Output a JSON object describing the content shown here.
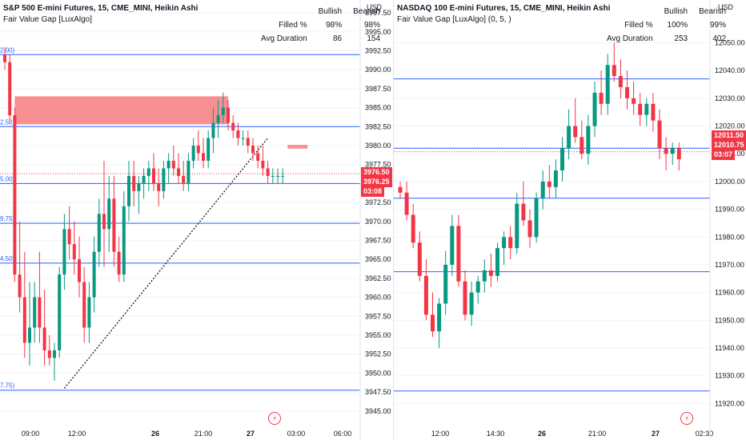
{
  "colors": {
    "bull": "#089981",
    "bear": "#f23645",
    "level": "#2962ff",
    "fvg_fill": "#f77c80",
    "grid": "#f0f3fa",
    "trend": "#131722",
    "axis_text": "#131722",
    "level_label": "#2962ff"
  },
  "chart_data": [
    {
      "type": "candlestick",
      "title": "S&P 500 E-mini Futures, 15, CME_MINI, Heikin Ashi",
      "indicator": "Fair Value Gap [LuxAlgo]",
      "currency": "USD",
      "stats": {
        "headers": [
          "Bullish",
          "Bearish"
        ],
        "rows": [
          {
            "label": "Filled %",
            "values": [
              "98%",
              "98%"
            ]
          },
          {
            "label": "Avg Duration",
            "values": [
              "86",
              "154"
            ]
          }
        ]
      },
      "y_ticks": [
        "3997.50",
        "3995.00",
        "3992.50",
        "3990.00",
        "3987.50",
        "3985.00",
        "3982.50",
        "3980.00",
        "3977.50",
        "3975.00",
        "3972.50",
        "3970.00",
        "3967.50",
        "3965.00",
        "3962.50",
        "3960.00",
        "3957.50",
        "3955.00",
        "3952.50",
        "3950.00",
        "3947.50",
        "3945.00"
      ],
      "ylim": [
        3943.5,
        3999.2
      ],
      "x_ticks": [
        "09:00",
        "12:00",
        "26",
        "21:00",
        "27",
        "03:00",
        "06:00"
      ],
      "level_labels": [
        "2.00)",
        "2.50)",
        "5.00)",
        "9.75)",
        "4.50)",
        "7.75)"
      ],
      "levels": [
        3992.0,
        3982.5,
        3975.0,
        3969.75,
        3964.5,
        3947.75
      ],
      "price_tags": [
        "3976.50",
        "3976.25",
        "03:08"
      ],
      "current_price": 3976.3,
      "fvg_boxes": [
        {
          "from": 2,
          "to": 45,
          "low": 3982.8,
          "high": 3986.5
        },
        {
          "from": 57,
          "to": 61,
          "low": 3979.6,
          "high": 3980.1
        }
      ],
      "trend_line": {
        "from": 12,
        "to": 53,
        "y_from": 3948.0,
        "y_to": 3981.0
      },
      "ohlc": [
        [
          3992,
          3993,
          3990,
          3991
        ],
        [
          3991,
          3992,
          3983,
          3984
        ],
        [
          3984,
          3985,
          3962,
          3963
        ],
        [
          3963,
          3970,
          3958,
          3960
        ],
        [
          3960,
          3966,
          3952,
          3954
        ],
        [
          3954,
          3962,
          3951,
          3956
        ],
        [
          3956,
          3962,
          3954,
          3960
        ],
        [
          3960,
          3966,
          3954,
          3956
        ],
        [
          3956,
          3961,
          3951,
          3953
        ],
        [
          3953,
          3955,
          3951,
          3952
        ],
        [
          3952,
          3954,
          3949,
          3953
        ],
        [
          3953,
          3964,
          3952,
          3963
        ],
        [
          3963,
          3971,
          3961,
          3969
        ],
        [
          3969,
          3972,
          3965,
          3967
        ],
        [
          3967,
          3970,
          3963,
          3965
        ],
        [
          3965,
          3968,
          3960,
          3962
        ],
        [
          3962,
          3964,
          3954,
          3956
        ],
        [
          3956,
          3962,
          3954,
          3960
        ],
        [
          3960,
          3968,
          3958,
          3966
        ],
        [
          3966,
          3973,
          3964,
          3971
        ],
        [
          3971,
          3978,
          3964,
          3969
        ],
        [
          3969,
          3976,
          3966,
          3973
        ],
        [
          3973,
          3976,
          3964,
          3966
        ],
        [
          3966,
          3968,
          3962,
          3963
        ],
        [
          3963,
          3974,
          3962,
          3972
        ],
        [
          3972,
          3978,
          3970,
          3976
        ],
        [
          3976,
          3978,
          3972,
          3974
        ],
        [
          3974,
          3976,
          3971,
          3975
        ],
        [
          3975,
          3977,
          3973,
          3976
        ],
        [
          3976,
          3978,
          3974,
          3977
        ],
        [
          3977,
          3979,
          3974,
          3975
        ],
        [
          3975,
          3977,
          3972,
          3974
        ],
        [
          3974,
          3978,
          3973,
          3977
        ],
        [
          3977,
          3979,
          3975,
          3978
        ],
        [
          3978,
          3980,
          3976,
          3977
        ],
        [
          3977,
          3979,
          3975,
          3976
        ],
        [
          3976,
          3978,
          3974,
          3975
        ],
        [
          3975,
          3979,
          3974,
          3978
        ],
        [
          3978,
          3981,
          3977,
          3980
        ],
        [
          3980,
          3982,
          3978,
          3979
        ],
        [
          3979,
          3981,
          3977,
          3978
        ],
        [
          3978,
          3982,
          3977,
          3981
        ],
        [
          3981,
          3985,
          3979,
          3983
        ],
        [
          3983,
          3986,
          3981,
          3984
        ],
        [
          3984,
          3987,
          3983,
          3985
        ],
        [
          3985,
          3986,
          3982,
          3983
        ],
        [
          3983,
          3984,
          3981,
          3982
        ],
        [
          3982,
          3983,
          3980,
          3981
        ],
        [
          3981,
          3982,
          3980,
          3981
        ],
        [
          3981,
          3982,
          3979,
          3980
        ],
        [
          3980,
          3981,
          3978,
          3979
        ],
        [
          3979,
          3980,
          3977,
          3978
        ],
        [
          3978,
          3980,
          3976,
          3977
        ],
        [
          3977,
          3978,
          3975,
          3976
        ],
        [
          3976,
          3977,
          3975,
          3976
        ],
        [
          3976,
          3977,
          3975,
          3976
        ],
        [
          3976,
          3977,
          3975,
          3976
        ]
      ]
    },
    {
      "type": "candlestick",
      "title": "NASDAQ 100 E-mini Futures, 15, CME_MINI, Heikin Ashi",
      "indicator": "Fair Value Gap [LuxAlgo] (0, 5, )",
      "currency": "USD",
      "stats": {
        "headers": [
          "Bullish",
          "Bearish"
        ],
        "rows": [
          {
            "label": "Filled %",
            "values": [
              "100%",
              "99%"
            ]
          },
          {
            "label": "Avg Duration",
            "values": [
              "253",
              "402"
            ]
          }
        ]
      },
      "y_ticks": [
        "12050.00",
        "12040.00",
        "12030.00",
        "12020.00",
        "12010.00",
        "12000.00",
        "11990.00",
        "11980.00",
        "11970.00",
        "11960.00",
        "11950.00",
        "11940.00",
        "11930.00",
        "11920.00"
      ],
      "ylim": [
        11915.5,
        12058.5
      ],
      "x_ticks": [
        "12:00",
        "14:30",
        "26",
        "21:00",
        "27",
        "02:30"
      ],
      "levels": [
        12037.0,
        12012.0,
        11994.0,
        11967.5,
        11924.5
      ],
      "price_tags": [
        "12011.50",
        "12010.75",
        "03:07"
      ],
      "current_price": 12010.75,
      "ohlc": [
        [
          11998,
          12000,
          11994,
          11996
        ],
        [
          11996,
          12000,
          11986,
          11988
        ],
        [
          11988,
          11992,
          11976,
          11978
        ],
        [
          11978,
          11982,
          11964,
          11966
        ],
        [
          11966,
          11972,
          11950,
          11952
        ],
        [
          11952,
          11960,
          11944,
          11946
        ],
        [
          11946,
          11958,
          11940,
          11956
        ],
        [
          11956,
          11975,
          11952,
          11970
        ],
        [
          11970,
          11988,
          11966,
          11984
        ],
        [
          11984,
          11988,
          11962,
          11964
        ],
        [
          11964,
          11968,
          11950,
          11952
        ],
        [
          11952,
          11964,
          11948,
          11960
        ],
        [
          11960,
          11966,
          11956,
          11964
        ],
        [
          11964,
          11972,
          11960,
          11968
        ],
        [
          11968,
          11974,
          11962,
          11966
        ],
        [
          11966,
          11978,
          11964,
          11976
        ],
        [
          11976,
          11982,
          11970,
          11980
        ],
        [
          11980,
          11984,
          11972,
          11976
        ],
        [
          11976,
          11996,
          11974,
          11992
        ],
        [
          11992,
          12000,
          11984,
          11986
        ],
        [
          11986,
          11990,
          11976,
          11980
        ],
        [
          11980,
          11996,
          11978,
          11994
        ],
        [
          11994,
          12004,
          11990,
          12000
        ],
        [
          12000,
          12006,
          11994,
          11998
        ],
        [
          11998,
          12008,
          11994,
          12004
        ],
        [
          12004,
          12016,
          12000,
          12012
        ],
        [
          12012,
          12026,
          12008,
          12020
        ],
        [
          12020,
          12030,
          12014,
          12016
        ],
        [
          12016,
          12022,
          12008,
          12010
        ],
        [
          12010,
          12024,
          12006,
          12020
        ],
        [
          12020,
          12036,
          12016,
          12032
        ],
        [
          12032,
          12040,
          12024,
          12028
        ],
        [
          12028,
          12046,
          12024,
          12042
        ],
        [
          12042,
          12050,
          12036,
          12038
        ],
        [
          12038,
          12044,
          12030,
          12034
        ],
        [
          12034,
          12040,
          12026,
          12030
        ],
        [
          12030,
          12036,
          12024,
          12028
        ],
        [
          12028,
          12032,
          12020,
          12024
        ],
        [
          12024,
          12030,
          12020,
          12028
        ],
        [
          12028,
          12032,
          12018,
          12022
        ],
        [
          12022,
          12026,
          12008,
          12012
        ],
        [
          12012,
          12016,
          12004,
          12010
        ],
        [
          12010,
          12014,
          12006,
          12012
        ],
        [
          12012,
          12014,
          12004,
          12008
        ]
      ]
    }
  ]
}
